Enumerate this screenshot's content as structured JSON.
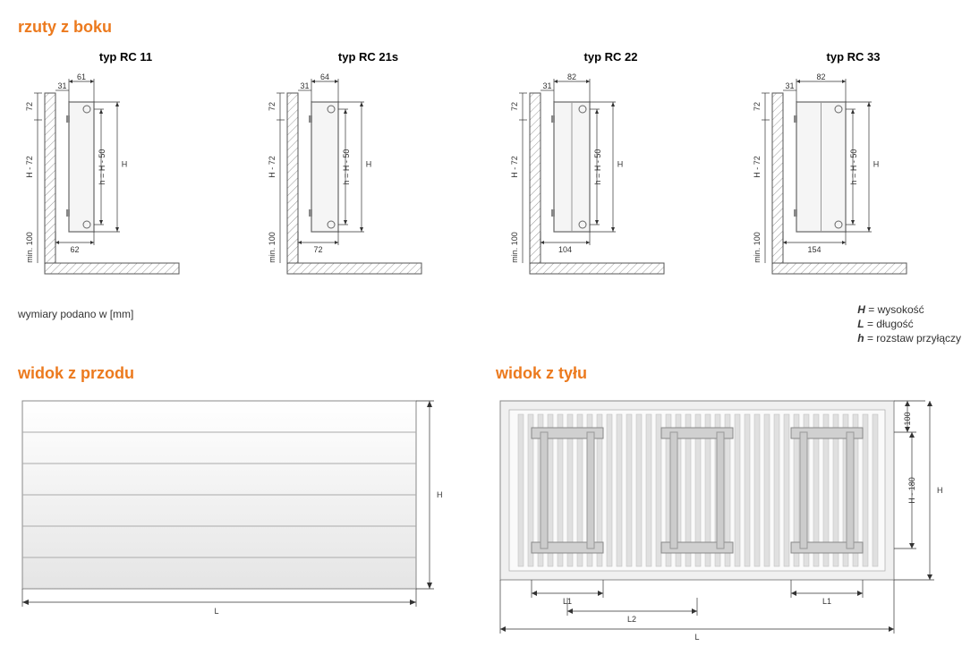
{
  "titles": {
    "side": "rzuty z boku",
    "front": "widok z przodu",
    "rear": "widok z tyłu"
  },
  "side_views": [
    {
      "type": "typ RC 11",
      "top_dim": "61",
      "top_offset": "31",
      "left_h": "72",
      "vert_label": "H - 72",
      "min_label": "min. 100",
      "inner_h": "h = H - 50",
      "right_h": "H",
      "bottom_dim": "62",
      "rad_width": 28
    },
    {
      "type": "typ RC 21s",
      "top_dim": "64",
      "top_offset": "31",
      "left_h": "72",
      "vert_label": "H - 72",
      "min_label": "min. 100",
      "inner_h": "h = H - 50",
      "right_h": "H",
      "bottom_dim": "72",
      "rad_width": 30
    },
    {
      "type": "typ RC 22",
      "top_dim": "82",
      "top_offset": "31",
      "left_h": "72",
      "vert_label": "H - 72",
      "min_label": "min. 100",
      "inner_h": "h = H - 50",
      "right_h": "H",
      "bottom_dim": "104",
      "rad_width": 40
    },
    {
      "type": "typ RC 33",
      "top_dim": "82",
      "top_offset": "31",
      "left_h": "72",
      "vert_label": "H - 72",
      "min_label": "min. 100",
      "inner_h": "h = H - 50",
      "right_h": "H",
      "bottom_dim": "154",
      "rad_width": 55
    }
  ],
  "note": "wymiary podano w [mm]",
  "legend": [
    {
      "sym": "H",
      "desc": "= wysokość"
    },
    {
      "sym": "L",
      "desc": "= długość"
    },
    {
      "sym": "h",
      "desc": "= rozstaw przyłączy"
    }
  ],
  "front": {
    "L": "L",
    "H": "H"
  },
  "rear": {
    "L": "L",
    "L1": "L1",
    "L2": "L2",
    "H": "H",
    "H180": "H - 180",
    "top100": "100"
  },
  "colors": {
    "accent": "#ec7a1e",
    "line": "#555555",
    "hatch": "#999999",
    "fill_light": "#f8f8f8",
    "fill_grad1": "#ffffff",
    "fill_grad2": "#e8e8e8"
  }
}
